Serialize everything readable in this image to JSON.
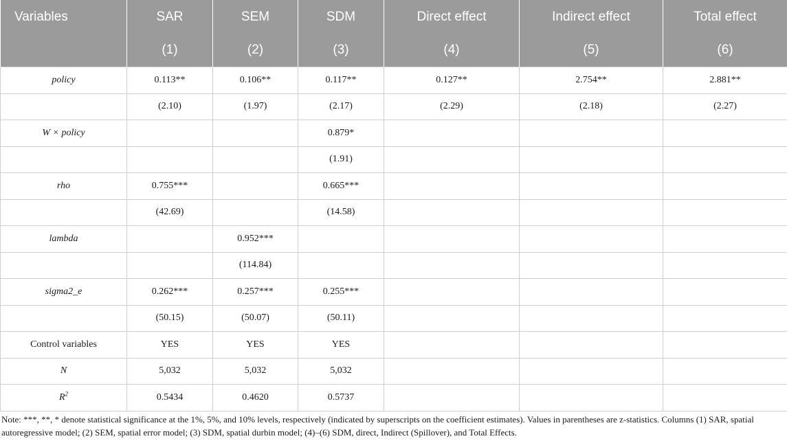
{
  "table": {
    "header_top": [
      "Variables",
      "SAR",
      "SEM",
      "SDM",
      "Direct effect",
      "Indirect effect",
      "Total effect"
    ],
    "header_sub": [
      "",
      "(1)",
      "(2)",
      "(3)",
      "(4)",
      "(5)",
      "(6)"
    ],
    "rows": [
      {
        "label": "policy",
        "italic": true,
        "cells": [
          "0.113**",
          "0.106**",
          "0.117**",
          "0.127**",
          "2.754**",
          "2.881**"
        ]
      },
      {
        "label": "",
        "italic": false,
        "cells": [
          "(2.10)",
          "(1.97)",
          "(2.17)",
          "(2.29)",
          "(2.18)",
          "(2.27)"
        ]
      },
      {
        "label": "W × policy",
        "italic": true,
        "cells": [
          "",
          "",
          "0.879*",
          "",
          "",
          ""
        ]
      },
      {
        "label": "",
        "italic": false,
        "cells": [
          "",
          "",
          "(1.91)",
          "",
          "",
          ""
        ]
      },
      {
        "label": "rho",
        "italic": true,
        "cells": [
          "0.755***",
          "",
          "0.665***",
          "",
          "",
          ""
        ]
      },
      {
        "label": "",
        "italic": false,
        "cells": [
          "(42.69)",
          "",
          "(14.58)",
          "",
          "",
          ""
        ]
      },
      {
        "label": "lambda",
        "italic": true,
        "cells": [
          "",
          "0.952***",
          "",
          "",
          "",
          ""
        ]
      },
      {
        "label": "",
        "italic": false,
        "cells": [
          "",
          "(114.84)",
          "",
          "",
          "",
          ""
        ]
      },
      {
        "label": "sigma2_e",
        "italic": true,
        "cells": [
          "0.262***",
          "0.257***",
          "0.255***",
          "",
          "",
          ""
        ]
      },
      {
        "label": "",
        "italic": false,
        "cells": [
          "(50.15)",
          "(50.07)",
          "(50.11)",
          "",
          "",
          ""
        ]
      },
      {
        "label": "Control variables",
        "italic": false,
        "cells": [
          "YES",
          "YES",
          "YES",
          "",
          "",
          ""
        ]
      },
      {
        "label": "N",
        "italic": true,
        "cells": [
          "5,032",
          "5,032",
          "5,032",
          "",
          "",
          ""
        ]
      },
      {
        "label": "R",
        "label_sup": "2",
        "italic": true,
        "cells": [
          "0.5434",
          "0.4620",
          "0.5737",
          "",
          "",
          ""
        ]
      }
    ]
  },
  "note": "Note: ***, **, * denote statistical significance at the 1%, 5%, and 10% levels, respectively (indicated by superscripts on the coefficient estimates). Values in parentheses are z-statistics. Columns (1) SAR, spatial autoregressive model; (2) SEM, spatial error model; (3) SDM, spatial durbin model; (4)–(6) SDM, direct, Indirect (Spillover), and Total Effects.",
  "colors": {
    "header_bg": "#9b9b9b",
    "header_text": "#ffffff",
    "grid": "#cfcfcf"
  }
}
